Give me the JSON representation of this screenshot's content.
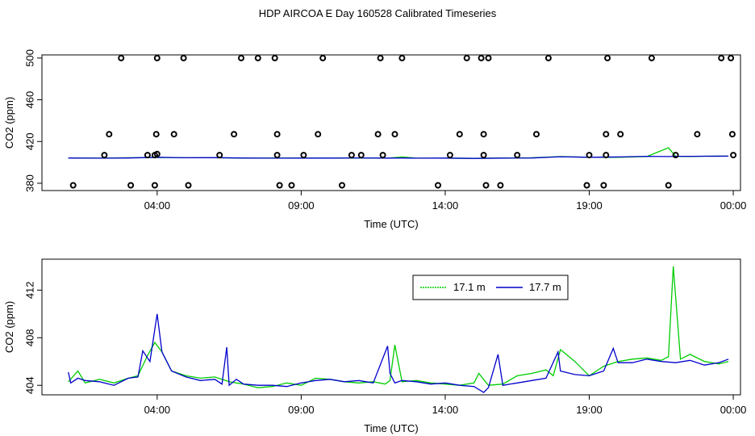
{
  "title": "HDP AIRCOA E  Day 160528  Calibrated Timeseries",
  "colors": {
    "series_17_1": "#00cc00",
    "series_17_7": "#0000cc",
    "circles": "#000000"
  },
  "chart_data": [
    {
      "type": "scatter+line",
      "xlabel": "Time (UTC)",
      "ylabel": "CO2 (ppm)",
      "xlim": [
        "2016-05-28T00:00",
        "2016-05-29T00:15"
      ],
      "ylim": [
        373,
        503
      ],
      "x_ticks": [
        "04:00",
        "09:00",
        "14:00",
        "19:00",
        "00:00"
      ],
      "y_ticks": [
        380,
        420,
        460,
        500
      ],
      "grid": false,
      "calibration_points": {
        "x": [
          "01:05",
          "02:10",
          "02:20",
          "02:45",
          "03:05",
          "03:40",
          "03:55",
          "03:55",
          "03:58",
          "04:00",
          "04:00",
          "04:35",
          "04:55",
          "05:05",
          "06:10",
          "06:40",
          "06:55",
          "07:30",
          "08:05",
          "08:10",
          "08:10",
          "08:15",
          "08:40",
          "09:05",
          "09:35",
          "09:45",
          "10:25",
          "10:45",
          "11:05",
          "11:40",
          "11:45",
          "11:50",
          "12:15",
          "12:30",
          "13:45",
          "14:10",
          "14:30",
          "14:45",
          "15:15",
          "15:20",
          "15:20",
          "15:25",
          "15:30",
          "15:55",
          "16:30",
          "17:10",
          "17:35",
          "18:55",
          "19:00",
          "19:30",
          "19:35",
          "19:35",
          "19:38",
          "20:05",
          "21:10",
          "21:45",
          "22:00",
          "22:45",
          "23:35",
          "23:55",
          "23:58",
          "00:00"
        ],
        "y": [
          378,
          407,
          427,
          500,
          378,
          407,
          378,
          407,
          427,
          500,
          408,
          427,
          500,
          378,
          407,
          427,
          500,
          500,
          500,
          427,
          407,
          378,
          378,
          407,
          427,
          500,
          378,
          407,
          407,
          427,
          500,
          407,
          427,
          500,
          378,
          407,
          427,
          500,
          500,
          427,
          407,
          378,
          500,
          378,
          407,
          427,
          500,
          378,
          407,
          378,
          407,
          427,
          500,
          427,
          500,
          378,
          407,
          427,
          500,
          500,
          427,
          407
        ]
      },
      "series": [
        {
          "name": "17.1 m",
          "x": [
            "00:55",
            "02:00",
            "03:00",
            "04:00",
            "05:00",
            "06:00",
            "07:00",
            "08:00",
            "09:00",
            "10:00",
            "11:00",
            "12:00",
            "12:30",
            "13:00",
            "14:00",
            "15:00",
            "16:00",
            "17:00",
            "18:00",
            "19:00",
            "20:00",
            "21:00",
            "21:45",
            "22:00",
            "22:30",
            "23:00",
            "23:50"
          ],
          "y": [
            404.3,
            404.1,
            404.4,
            404.7,
            404.4,
            404.5,
            404.0,
            404.3,
            404.2,
            404.2,
            404.2,
            404.0,
            405.2,
            404.0,
            404.1,
            403.8,
            404.2,
            404.4,
            405.6,
            404.9,
            404.8,
            405.6,
            414.0,
            405.8,
            405.6,
            405.9,
            406.0
          ]
        },
        {
          "name": "17.7 m",
          "x": [
            "00:55",
            "02:00",
            "03:00",
            "04:00",
            "05:00",
            "06:00",
            "07:00",
            "08:00",
            "09:00",
            "10:00",
            "11:00",
            "12:00",
            "12:30",
            "13:00",
            "14:00",
            "15:00",
            "16:00",
            "17:00",
            "18:00",
            "19:00",
            "20:00",
            "21:00",
            "21:45",
            "22:00",
            "22:30",
            "23:00",
            "23:50"
          ],
          "y": [
            404.2,
            404.0,
            404.2,
            404.9,
            404.4,
            404.5,
            404.2,
            404.0,
            404.1,
            404.1,
            404.3,
            404.1,
            404.2,
            404.0,
            404.1,
            403.8,
            404.1,
            404.2,
            405.4,
            404.9,
            405.2,
            405.8,
            405.6,
            405.8,
            405.8,
            405.9,
            406.0
          ]
        }
      ]
    },
    {
      "type": "line",
      "xlabel": "Time (UTC)",
      "ylabel": "CO2 (ppm)",
      "xlim": [
        "2016-05-28T00:00",
        "2016-05-29T00:15"
      ],
      "ylim": [
        403.2,
        414.6
      ],
      "x_ticks": [
        "04:00",
        "09:00",
        "14:00",
        "19:00",
        "00:00"
      ],
      "y_ticks": [
        404,
        408,
        412
      ],
      "grid": false,
      "legend_position": "top-right",
      "series": [
        {
          "name": "17.1 m",
          "x": [
            "00:55",
            "01:15",
            "01:30",
            "02:00",
            "02:30",
            "03:00",
            "03:20",
            "03:40",
            "03:55",
            "04:10",
            "04:30",
            "05:00",
            "05:30",
            "06:00",
            "06:30",
            "06:45",
            "07:00",
            "07:30",
            "08:00",
            "08:30",
            "09:00",
            "09:30",
            "10:00",
            "10:30",
            "11:00",
            "11:30",
            "11:55",
            "12:05",
            "12:15",
            "12:30",
            "13:00",
            "13:30",
            "14:00",
            "14:30",
            "15:00",
            "15:10",
            "15:30",
            "16:00",
            "16:30",
            "17:00",
            "17:30",
            "17:45",
            "18:00",
            "18:30",
            "19:00",
            "19:30",
            "20:00",
            "20:30",
            "21:00",
            "21:30",
            "21:45",
            "21:55",
            "22:10",
            "22:30",
            "23:00",
            "23:30",
            "23:50"
          ],
          "y": [
            404.3,
            405.2,
            404.2,
            404.5,
            404.2,
            404.6,
            404.8,
            406.5,
            407.6,
            406.8,
            405.2,
            404.8,
            404.6,
            404.7,
            404.3,
            404.2,
            404.1,
            403.8,
            403.9,
            404.2,
            404.0,
            404.6,
            404.5,
            404.3,
            404.2,
            404.3,
            404.1,
            404.4,
            407.4,
            404.3,
            404.4,
            404.2,
            404.1,
            404.0,
            404.2,
            405.0,
            404.0,
            404.1,
            404.8,
            405.0,
            405.3,
            404.8,
            407.0,
            406.0,
            404.8,
            405.6,
            406.0,
            406.2,
            406.3,
            406.1,
            406.4,
            414.0,
            406.2,
            406.6,
            406.0,
            405.8,
            406.0
          ]
        },
        {
          "name": "17.7 m",
          "x": [
            "00:55",
            "01:00",
            "01:15",
            "01:30",
            "02:00",
            "02:30",
            "03:00",
            "03:20",
            "03:30",
            "03:45",
            "04:00",
            "04:10",
            "04:30",
            "05:00",
            "05:30",
            "06:00",
            "06:15",
            "06:25",
            "06:30",
            "06:45",
            "07:00",
            "07:30",
            "08:00",
            "08:30",
            "09:00",
            "09:30",
            "10:00",
            "10:30",
            "11:00",
            "11:30",
            "12:00",
            "12:05",
            "12:15",
            "12:30",
            "13:00",
            "13:30",
            "14:00",
            "14:30",
            "15:00",
            "15:20",
            "15:30",
            "15:50",
            "16:00",
            "16:30",
            "17:00",
            "17:30",
            "17:55",
            "18:00",
            "18:30",
            "19:00",
            "19:30",
            "19:50",
            "20:00",
            "20:30",
            "21:00",
            "21:30",
            "22:00",
            "22:30",
            "23:00",
            "23:30",
            "23:50"
          ],
          "y": [
            405.1,
            404.2,
            404.6,
            404.4,
            404.3,
            404.0,
            404.6,
            404.7,
            406.9,
            406.0,
            410.0,
            406.8,
            405.2,
            404.7,
            404.4,
            404.5,
            404.1,
            407.2,
            404.0,
            404.5,
            404.1,
            404.0,
            404.0,
            403.9,
            404.2,
            404.4,
            404.5,
            404.3,
            404.4,
            404.2,
            407.3,
            405.0,
            404.2,
            404.4,
            404.3,
            404.1,
            404.2,
            404.0,
            403.9,
            403.4,
            403.8,
            406.6,
            404.0,
            404.2,
            404.4,
            404.6,
            406.8,
            405.2,
            404.9,
            404.8,
            405.2,
            407.1,
            405.9,
            405.9,
            406.2,
            406.0,
            405.9,
            406.1,
            405.7,
            405.9,
            406.2
          ]
        }
      ]
    }
  ]
}
